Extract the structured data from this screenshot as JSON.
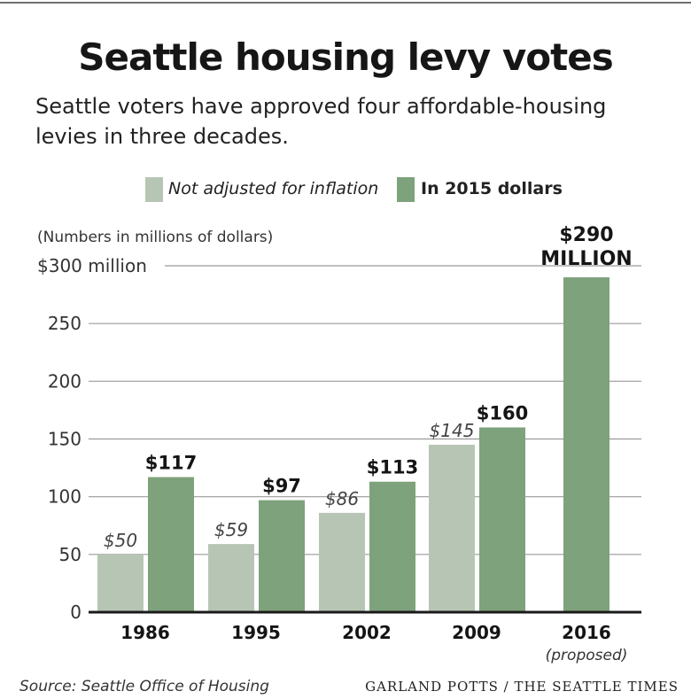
{
  "title": "Seattle housing levy votes",
  "subtitle": "Seattle voters have approved four affordable-housing levies in three decades.",
  "legend": {
    "nominal": "Not adjusted for inflation",
    "real": "In 2015 dollars"
  },
  "note": "(Numbers in millions of dollars)",
  "source": "Source: Seattle Office of Housing",
  "credit": "GARLAND POTTS / THE SEATTLE TIMES",
  "colors": {
    "nominal": "#b7c6b4",
    "real": "#7ea27c",
    "axis": "#1a1a1a",
    "grid": "#9a9a9a"
  },
  "chart_data": {
    "type": "bar",
    "title": "Seattle housing levy votes",
    "ylabel": "Millions of dollars",
    "ylim": [
      0,
      300
    ],
    "yticks": [
      0,
      50,
      100,
      150,
      200,
      250,
      300
    ],
    "ytick_labels": [
      "0",
      "50",
      "100",
      "150",
      "200",
      "250",
      "$300 million"
    ],
    "categories": [
      "1986",
      "1995",
      "2002",
      "2009",
      "2016"
    ],
    "category_sublabels": [
      "",
      "",
      "",
      "",
      "(proposed)"
    ],
    "series": [
      {
        "name": "Not adjusted for inflation",
        "key": "nominal",
        "values": [
          50,
          59,
          86,
          145,
          null
        ],
        "labels": [
          "$50",
          "$59",
          "$86",
          "$145",
          ""
        ]
      },
      {
        "name": "In 2015 dollars",
        "key": "real",
        "values": [
          117,
          97,
          113,
          160,
          290
        ],
        "labels": [
          "$117",
          "$97",
          "$113",
          "$160",
          "$290"
        ]
      }
    ],
    "highlight_label": [
      "$290",
      "MILLION"
    ]
  }
}
